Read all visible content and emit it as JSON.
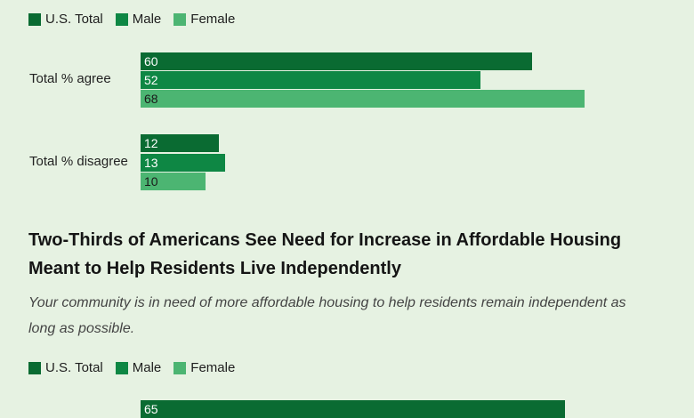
{
  "colors": {
    "us_total": "#0a6b32",
    "male": "#0e8744",
    "female": "#4cb572",
    "background": "#e6f2e2"
  },
  "legend": {
    "us_total": "U.S. Total",
    "male": "Male",
    "female": "Female"
  },
  "chart_data": [
    {
      "type": "bar",
      "orientation": "horizontal",
      "categories": [
        "Total % agree",
        "Total % disagree"
      ],
      "series": [
        {
          "name": "U.S. Total",
          "values": [
            60,
            12
          ]
        },
        {
          "name": "Male",
          "values": [
            52,
            13
          ]
        },
        {
          "name": "Female",
          "values": [
            68,
            10
          ]
        }
      ],
      "xlim": [
        0,
        100
      ],
      "grid": false,
      "legend_position": "top-left"
    },
    {
      "type": "bar",
      "orientation": "horizontal",
      "title": "Two-Thirds of Americans See Need for Increase in Affordable Housing Meant to Help Residents Live Independently",
      "subtitle": "Your community is in need of more affordable housing to help residents remain independent as long as possible.",
      "categories": [
        ""
      ],
      "series": [
        {
          "name": "U.S. Total",
          "values": [
            65
          ]
        }
      ],
      "xlim": [
        0,
        100
      ],
      "grid": false,
      "legend_position": "top-left"
    }
  ]
}
